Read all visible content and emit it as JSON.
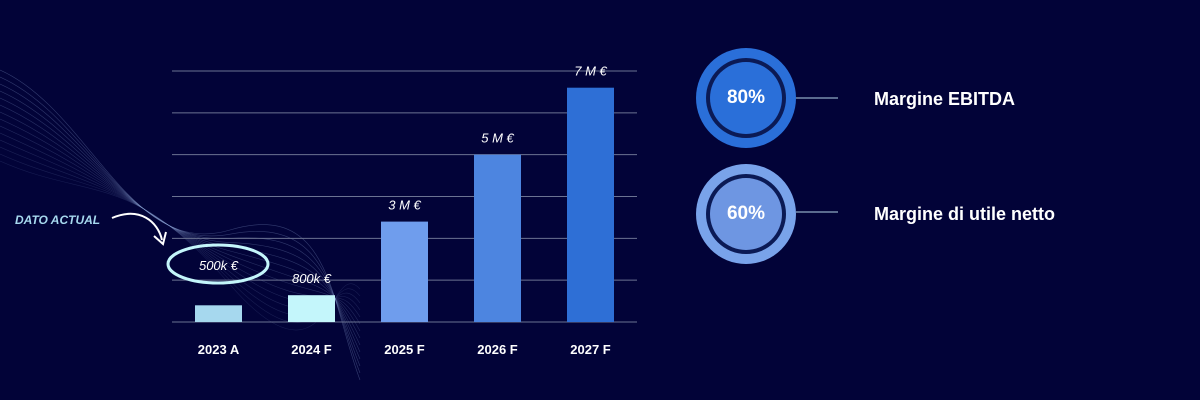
{
  "chart_data": {
    "type": "bar",
    "categories": [
      "2023 A",
      "2024 F",
      "2025 F",
      "2026 F",
      "2027 F"
    ],
    "values": [
      0.5,
      0.8,
      3,
      5,
      7
    ],
    "value_labels": [
      "500k €",
      "800k €",
      "3 M €",
      "5 M €",
      "7 M €"
    ],
    "bar_colors": [
      "#a6d8ee",
      "#c4f6fb",
      "#6f9ded",
      "#4d85e0",
      "#2e6fd6"
    ],
    "ylim": [
      0,
      7.5
    ],
    "grid": true,
    "annotation": "DATO ACTUAL"
  },
  "kpis": [
    {
      "value": "80%",
      "label": "Margine EBITDA"
    },
    {
      "value": "60%",
      "label": "Margine di utile netto"
    }
  ],
  "colors": {
    "background": "#020338",
    "grid": "#6b7392",
    "text": "#ffffff"
  }
}
